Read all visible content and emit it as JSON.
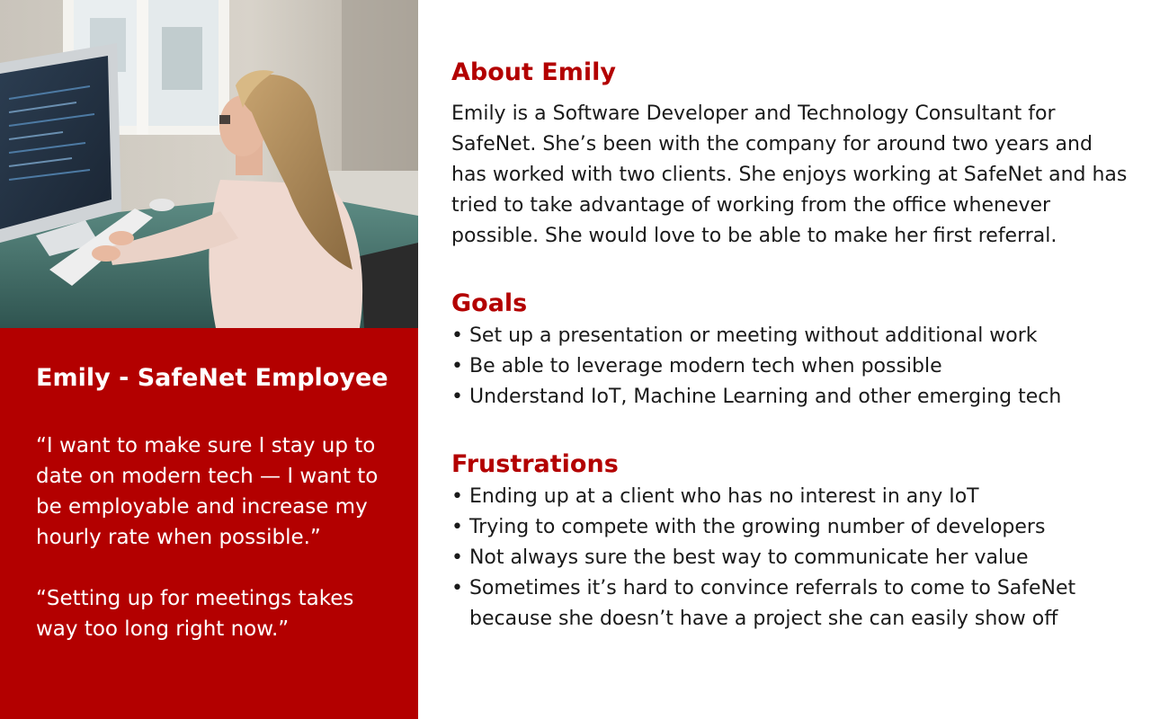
{
  "photo": {
    "alt": "Woman typing at a desktop computer in an office"
  },
  "persona": {
    "title": "Emily - SafeNet Employee",
    "quotes": [
      "“I want to make sure I stay up to date on modern tech — I want to be employable and increase my hourly rate when possible.”",
      "“Setting up for meetings takes way too long right now.”"
    ]
  },
  "about": {
    "heading": "About Emily",
    "text": "Emily is a Software Developer and Technology Consultant for SafeNet. She’s been with the company for around two years and has worked with two clients. She enjoys working at SafeNet and has tried to take advantage of working from the office whenever possible. She would love to be able to make her first referral."
  },
  "goals": {
    "heading": "Goals",
    "items": [
      "• Set up a presentation or meeting without additional work",
      "• Be able to leverage modern tech when possible",
      "• Understand IoT, Machine Learning and other emerging tech"
    ]
  },
  "frustrations": {
    "heading": "Frustrations",
    "items": [
      "• Ending up at a client who has no interest in any IoT",
      "• Trying to compete with the growing number of developers",
      "• Not always sure the best way to communicate her value",
      "• Sometimes it’s hard to convince referrals to come to SafeNet"
    ],
    "continuation": "because she doesn’t have a project she can easily show off"
  },
  "colors": {
    "accent": "#b30000",
    "text": "#1a1a1a",
    "panel_text": "#ffffff"
  }
}
